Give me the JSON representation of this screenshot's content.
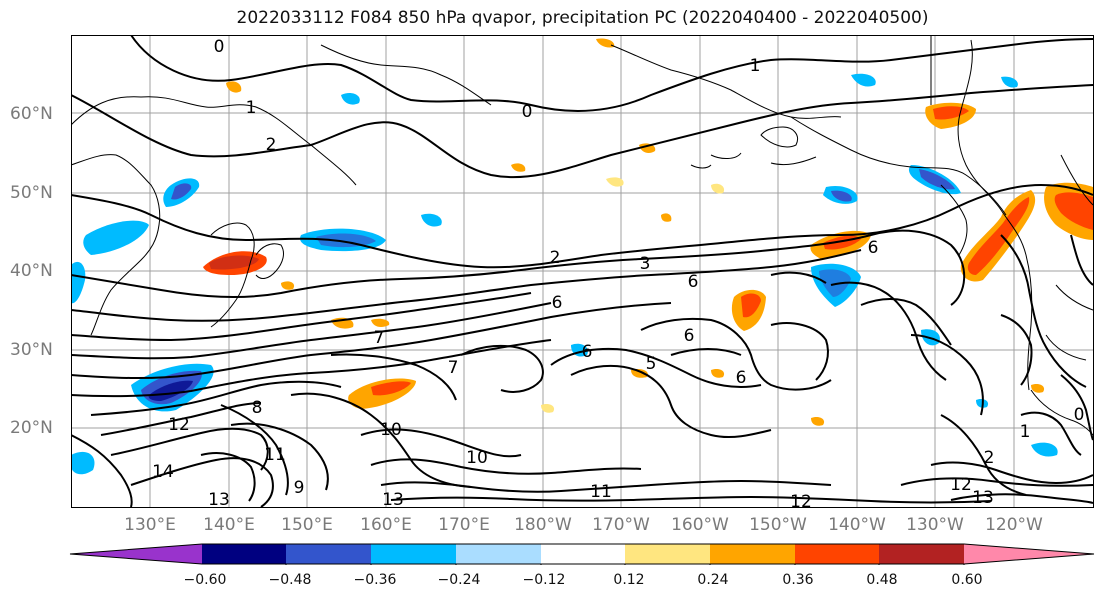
{
  "title": "2022033112 F084 850 hPa qvapor, precipitation PC (2022040400 - 2022040500)",
  "lat_labels": [
    "60°N",
    "50°N",
    "40°N",
    "30°N",
    "20°N"
  ],
  "lon_labels": [
    "130°E",
    "140°E",
    "150°E",
    "160°E",
    "170°E",
    "180°W",
    "170°W",
    "160°W",
    "150°W",
    "140°W",
    "130°W",
    "120°W"
  ],
  "contour_labels": [
    "0",
    "1",
    "0",
    "1",
    "2",
    "2",
    "3",
    "6",
    "6",
    "6",
    "6",
    "5",
    "7",
    "7",
    "8",
    "9",
    "10",
    "10",
    "11",
    "11",
    "12",
    "12",
    "13",
    "13",
    "14",
    "1",
    "2",
    "0",
    "6",
    "6",
    "12",
    "13"
  ],
  "colorbar": {
    "colors": [
      "#9933cc",
      "#000080",
      "#3355cc",
      "#00bbff",
      "#aaddff",
      "#ffffff",
      "#ffe680",
      "#ffa500",
      "#ff4400",
      "#b22222",
      "#ff88aa"
    ],
    "tick_labels": [
      "−0.60",
      "−0.48",
      "−0.36",
      "−0.24",
      "−0.12",
      "0.12",
      "0.24",
      "0.36",
      "0.48",
      "0.60"
    ]
  }
}
